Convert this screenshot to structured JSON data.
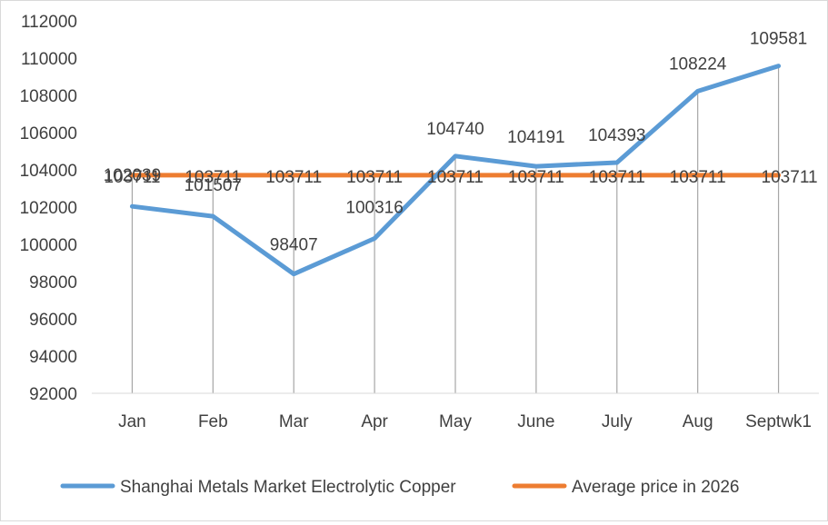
{
  "chart_data": {
    "type": "line",
    "categories": [
      "Jan",
      "Feb",
      "Mar",
      "Apr",
      "May",
      "June",
      "July",
      "Aug",
      "Septwk1"
    ],
    "series": [
      {
        "name": "Shanghai Metals Market Electrolytic Copper",
        "values": [
          102039,
          101507,
          98407,
          100316,
          104740,
          104191,
          104393,
          108224,
          109581
        ],
        "color": "#5b9bd5"
      },
      {
        "name": "Average price in 2026",
        "values": [
          103711,
          103711,
          103711,
          103711,
          103711,
          103711,
          103711,
          103711,
          103711
        ],
        "color": "#ed7d31"
      }
    ],
    "ylim": [
      92000,
      112000
    ],
    "yticks": [
      92000,
      94000,
      96000,
      98000,
      100000,
      102000,
      104000,
      106000,
      108000,
      110000,
      112000
    ],
    "drop_lines": true,
    "data_labels": true,
    "legend_position": "bottom",
    "title": "",
    "xlabel": "",
    "ylabel": ""
  }
}
